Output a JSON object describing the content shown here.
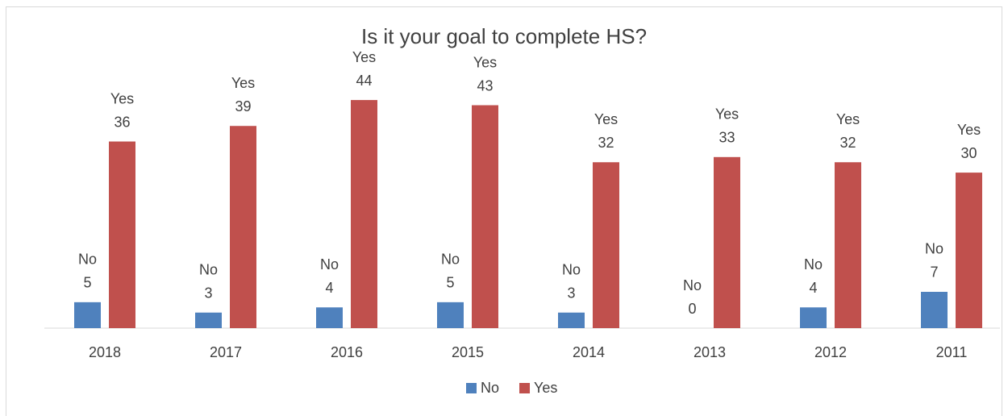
{
  "chart_data": {
    "type": "bar",
    "title": "Is it your goal to complete HS?",
    "categories": [
      "2018",
      "2017",
      "2016",
      "2015",
      "2014",
      "2013",
      "2012",
      "2011"
    ],
    "series": [
      {
        "name": "No",
        "color": "#4f81bd",
        "values": [
          5,
          3,
          4,
          5,
          3,
          0,
          4,
          7
        ]
      },
      {
        "name": "Yes",
        "color": "#c0504d",
        "values": [
          36,
          39,
          44,
          43,
          32,
          33,
          32,
          30
        ]
      }
    ],
    "legend": "bottom"
  }
}
